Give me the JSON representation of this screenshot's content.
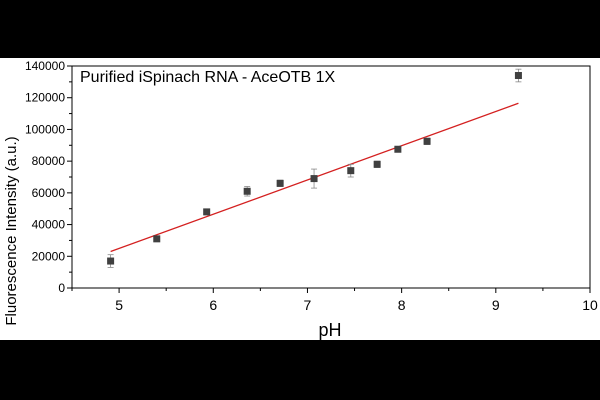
{
  "chart_data": {
    "type": "scatter",
    "title": "Purified iSpinach RNA - AceOTB 1X",
    "xlabel": "pH",
    "ylabel": "Fluorescence Intensity (a.u.)",
    "xlim": [
      4.5,
      10
    ],
    "ylim": [
      0,
      140000
    ],
    "xticks": [
      "5",
      "6",
      "7",
      "8",
      "9",
      "10"
    ],
    "yticks": [
      "0",
      "20000",
      "40000",
      "60000",
      "80000",
      "100000",
      "120000",
      "140000"
    ],
    "grid": false,
    "legend": "none",
    "series": [
      {
        "x": [
          4.91,
          5.4,
          5.93,
          6.36,
          6.71,
          7.07,
          7.46,
          7.74,
          7.96,
          8.27,
          9.24
        ],
        "y": [
          17000,
          31000,
          48000,
          61000,
          66000,
          69000,
          74000,
          78000,
          87500,
          92500,
          134000
        ],
        "error": [
          4000,
          1500,
          1000,
          3000,
          2000,
          6000,
          4000,
          2000,
          1500,
          2000,
          4000
        ],
        "color": "#404040"
      }
    ],
    "fit_line": {
      "x": [
        4.91,
        9.24
      ],
      "y": [
        23000,
        116500
      ],
      "color": "#d42020"
    }
  }
}
